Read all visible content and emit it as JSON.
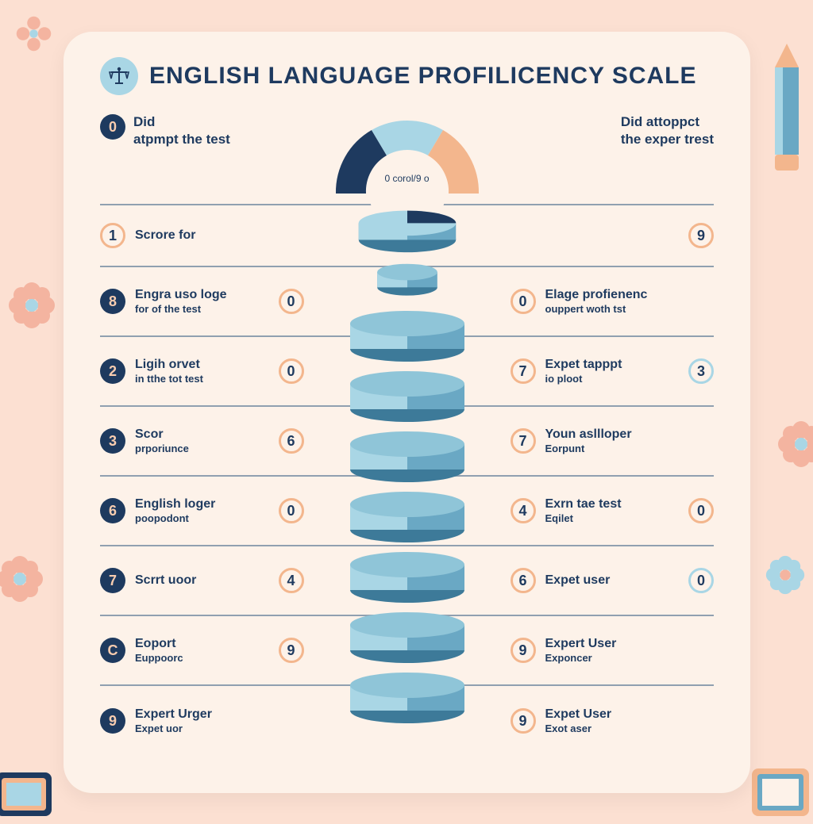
{
  "colors": {
    "page_bg": "#fce0d2",
    "card_bg": "#fdf2e9",
    "text_dark": "#1e3a5f",
    "divider": "#90a0b0",
    "peach": "#f3b68d",
    "peach_dark": "#e8a477",
    "light_blue": "#a9d6e5",
    "mid_blue": "#6aa8c4",
    "dark_blue": "#1e3a5f",
    "flower_peach": "#f4b4a0",
    "flower_blue": "#a9d6e5"
  },
  "title": "ENGLISH  LANGUAGE PROFILICENCY SCALE",
  "gauge_text": "0 corol/9 o",
  "top_left": {
    "num": "0",
    "line1": "Did",
    "line2": "atpmpt the test"
  },
  "top_right": {
    "num": "",
    "line1": "Did attoppct",
    "line2": "the exper trest"
  },
  "rows": [
    {
      "left": {
        "num": "1",
        "badge_style": "peach",
        "t1": "Scrore for",
        "t2": ""
      },
      "right": {
        "end_num": "9",
        "end_style": "peach",
        "t1": "",
        "t2": ""
      },
      "center_nums": []
    },
    {
      "left": {
        "num": "8",
        "badge_style": "dark",
        "t1": "Engra uso loge",
        "t2": "for of the test"
      },
      "right": {
        "end_num": "",
        "end_style": "",
        "t1": "Elage profienenc",
        "t2": "ouppert woth tst"
      },
      "center_nums": [
        "0",
        "0"
      ]
    },
    {
      "left": {
        "num": "2",
        "badge_style": "dark",
        "t1": "Ligih orvet",
        "t2": "in tthe tot test"
      },
      "right": {
        "end_num": "3",
        "end_style": "blue",
        "t1": "Expet tapppt",
        "t2": "io ploot"
      },
      "center_nums": [
        "0",
        "7"
      ]
    },
    {
      "left": {
        "num": "3",
        "badge_style": "dark",
        "t1": "Scor",
        "t2": "prporiunce"
      },
      "right": {
        "end_num": "",
        "end_style": "",
        "t1": "Youn asllloper",
        "t2": "Eorpunt"
      },
      "center_nums": [
        "6",
        "7"
      ]
    },
    {
      "left": {
        "num": "6",
        "badge_style": "dark",
        "t1": "English loger",
        "t2": "poopodont"
      },
      "right": {
        "end_num": "0",
        "end_style": "peach",
        "t1": "Exrn tae test",
        "t2": "Eqilet"
      },
      "center_nums": [
        "0",
        "4"
      ]
    },
    {
      "left": {
        "num": "7",
        "badge_style": "dark",
        "t1": "Scrrt uoor",
        "t2": ""
      },
      "right": {
        "end_num": "0",
        "end_style": "blue",
        "t1": "Expet user",
        "t2": ""
      },
      "center_nums": [
        "4",
        "6"
      ]
    },
    {
      "left": {
        "num": "C",
        "badge_style": "dark",
        "t1": "Eoport",
        "t2": "Euppoorc"
      },
      "right": {
        "end_num": "",
        "end_style": "",
        "t1": "Expert User",
        "t2": "Exponcer"
      },
      "center_nums": [
        "9",
        "9"
      ]
    },
    {
      "left": {
        "num": "9",
        "badge_style": "dark",
        "t1": "Expert Urger",
        "t2": "Expet uor"
      },
      "right": {
        "end_num": "",
        "end_style": "",
        "t1": "Expet User",
        "t2": "Exot aser"
      },
      "center_nums": [
        "",
        "9"
      ]
    }
  ],
  "disc_style": {
    "left_fill": "#a9d6e5",
    "right_fill": "#6aa8c4",
    "rim": "#7fb8d0",
    "side_dark": "#3d7a99"
  }
}
